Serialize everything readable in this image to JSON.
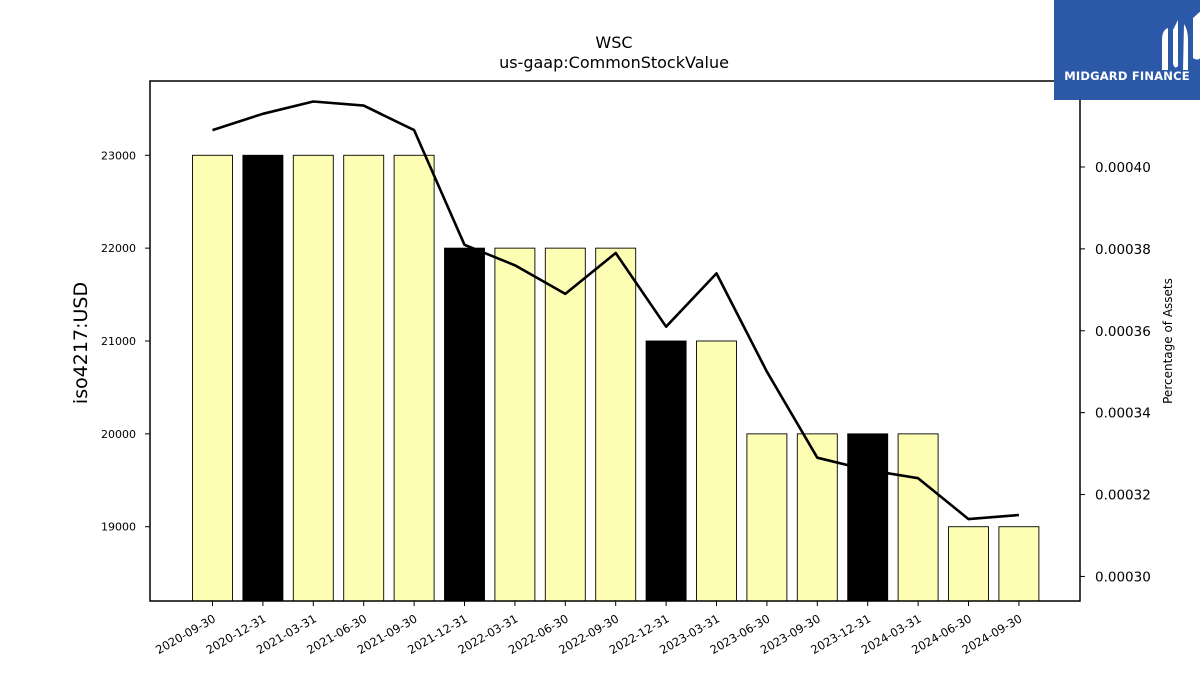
{
  "chart_data": {
    "type": "bar",
    "title": "WSC",
    "subtitle": "us-gaap:CommonStockValue",
    "ylabel": "iso4217:USD",
    "y2label": "Percentage of Assets",
    "categories": [
      "2020-09-30",
      "2020-12-31",
      "2021-03-31",
      "2021-06-30",
      "2021-09-30",
      "2021-12-31",
      "2022-03-31",
      "2022-06-30",
      "2022-09-30",
      "2022-12-31",
      "2023-03-31",
      "2023-06-30",
      "2023-09-30",
      "2023-12-31",
      "2024-03-31",
      "2024-06-30",
      "2024-09-30"
    ],
    "values": [
      23000,
      23000,
      23000,
      23000,
      23000,
      22000,
      22000,
      22000,
      22000,
      21000,
      21000,
      20000,
      20000,
      20000,
      20000,
      19000,
      19000
    ],
    "bar_colors": [
      "#fdfdb4",
      "#000000",
      "#fdfdb4",
      "#fdfdb4",
      "#fdfdb4",
      "#000000",
      "#fdfdb4",
      "#fdfdb4",
      "#fdfdb4",
      "#000000",
      "#fdfdb4",
      "#fdfdb4",
      "#fdfdb4",
      "#000000",
      "#fdfdb4",
      "#fdfdb4",
      "#fdfdb4"
    ],
    "line_values": [
      0.000409,
      0.000413,
      0.000416,
      0.000415,
      0.000409,
      0.000381,
      0.000376,
      0.000369,
      0.000379,
      0.000361,
      0.000374,
      0.00035,
      0.000329,
      0.000326,
      0.000324,
      0.000314,
      0.000315
    ],
    "ylim": [
      18200,
      23800
    ],
    "y2lim": [
      0.000294,
      0.000421
    ],
    "yticks": [
      19000,
      20000,
      21000,
      22000,
      23000
    ],
    "y2ticks": [
      "0.00030",
      "0.00032",
      "0.00034",
      "0.00036",
      "0.00038",
      "0.00040"
    ],
    "grid": false
  },
  "logo": {
    "text": "MIDGARD FINANCE",
    "color": "#2b59a8"
  }
}
